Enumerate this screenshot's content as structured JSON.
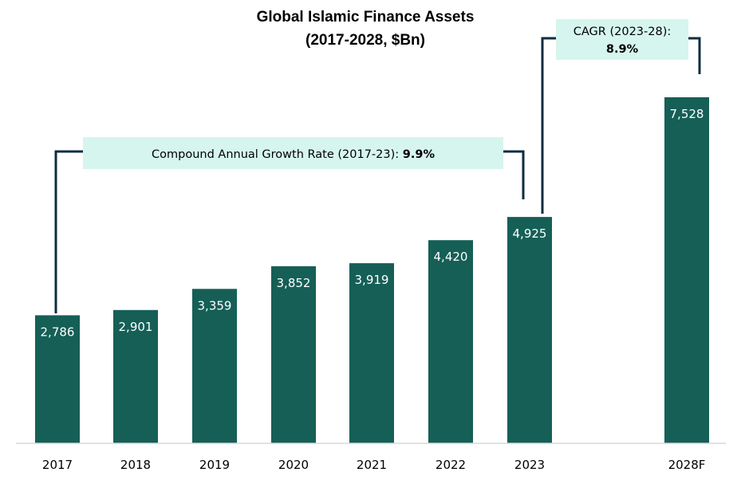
{
  "chart_data": {
    "type": "bar",
    "title_lines": [
      "Global Islamic Finance Assets",
      "(2017-2028, $Bn)"
    ],
    "categories": [
      "2017",
      "2018",
      "2019",
      "2020",
      "2021",
      "2022",
      "2023",
      "2028F"
    ],
    "values": [
      2786,
      2901,
      3359,
      3852,
      3919,
      4420,
      4925,
      7528
    ],
    "value_labels": [
      "2,786",
      "2,901",
      "3,359",
      "3,852",
      "3,919",
      "4,420",
      "4,925",
      "7,528"
    ],
    "xlabel": "",
    "ylabel": "",
    "ylim": [
      0,
      9000
    ],
    "grid": false,
    "annotations": [
      {
        "id": "cagr-2017-23",
        "from": "2017",
        "to": "2023",
        "text": "Compound Annual Growth Rate (2017-23): ",
        "value": "9.9%"
      },
      {
        "id": "cagr-2023-28",
        "from": "2023",
        "to": "2028F",
        "text": "CAGR (2023-28):",
        "value": "8.9%"
      }
    ]
  },
  "colors": {
    "bar": "#155f57",
    "annotation_fill": "#d6f5ee",
    "bracket_line": "#0f2d40",
    "axis": "#d9d9d9"
  }
}
